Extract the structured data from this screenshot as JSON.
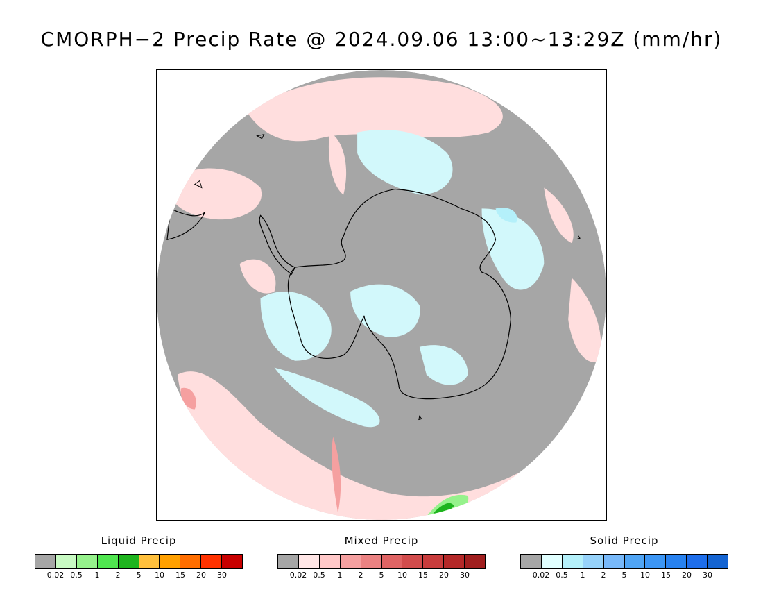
{
  "title": "CMORPH−2 Precip Rate @ 2024.09.06 13:00~13:29Z (mm/hr)",
  "colors": {
    "no_precip": "#a6a6a6",
    "mixed_light": "#ffdede",
    "solid_light": "#d2f8fb",
    "coastline": "#000000"
  },
  "legends": [
    {
      "id": "liquid",
      "title": "Liquid Precip",
      "colors": [
        "#a6a6a6",
        "#c8fac3",
        "#96f28c",
        "#50e650",
        "#1eb41e",
        "#ffc03c",
        "#ffa000",
        "#ff6e00",
        "#ff3200",
        "#c80000"
      ],
      "ticks": [
        "0.02",
        "0.5",
        "1",
        "2",
        "5",
        "10",
        "15",
        "20",
        "30"
      ]
    },
    {
      "id": "mixed",
      "title": "Mixed Precip",
      "colors": [
        "#a6a6a6",
        "#ffe6e6",
        "#ffc8c8",
        "#f5a0a0",
        "#eb8282",
        "#e06464",
        "#d24c4c",
        "#c83c3c",
        "#b42828",
        "#a01e1e"
      ],
      "ticks": [
        "0.02",
        "0.5",
        "1",
        "2",
        "5",
        "10",
        "15",
        "20",
        "30"
      ]
    },
    {
      "id": "solid",
      "title": "Solid Precip",
      "colors": [
        "#a6a6a6",
        "#e1ffff",
        "#b4f0fa",
        "#96d2fa",
        "#78b9fa",
        "#50a5f5",
        "#3c96f5",
        "#2882f0",
        "#1e6eeb",
        "#1464d2"
      ],
      "ticks": [
        "0.02",
        "0.5",
        "1",
        "2",
        "5",
        "10",
        "15",
        "20",
        "30"
      ]
    }
  ]
}
